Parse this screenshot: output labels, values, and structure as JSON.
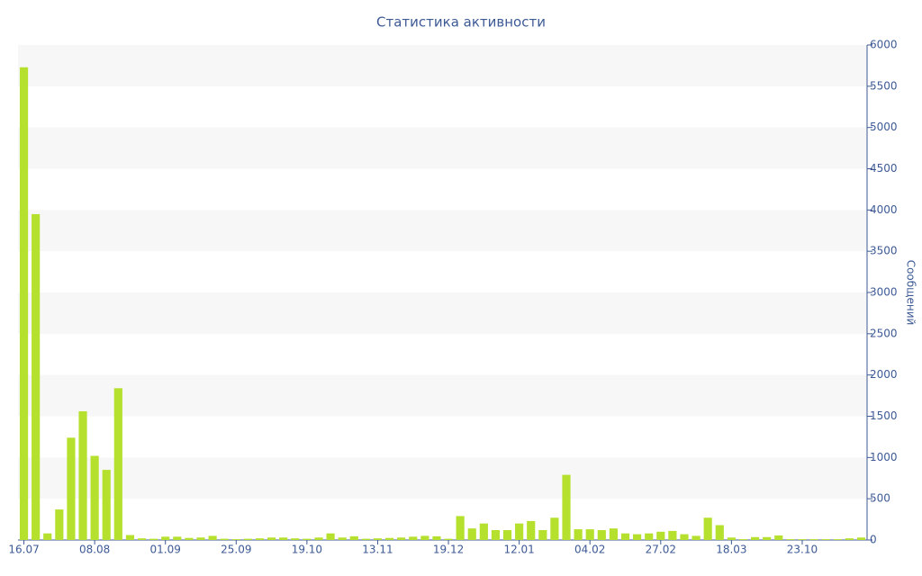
{
  "chart_data": {
    "type": "bar",
    "title": "Статистика активности",
    "y_label": "Сообщений",
    "y_axis_side": "right",
    "color": "#b5e02e",
    "grid": true,
    "categories": [
      "16.07",
      null,
      null,
      null,
      null,
      null,
      "08.08",
      null,
      null,
      null,
      null,
      null,
      "01.09",
      null,
      null,
      null,
      null,
      null,
      "25.09",
      null,
      null,
      null,
      null,
      null,
      "19.10",
      null,
      null,
      null,
      null,
      null,
      "13.11",
      null,
      null,
      null,
      null,
      null,
      "19.12",
      null,
      null,
      null,
      null,
      null,
      "12.01",
      null,
      null,
      null,
      null,
      null,
      "04.02",
      null,
      null,
      null,
      null,
      null,
      "27.02",
      null,
      null,
      null,
      null,
      null,
      "18.03",
      null,
      null,
      null,
      null,
      null,
      "23.10",
      null,
      null,
      null,
      null,
      null
    ],
    "values": [
      5730,
      3950,
      80,
      370,
      1240,
      1560,
      1020,
      850,
      1840,
      60,
      20,
      15,
      40,
      40,
      25,
      30,
      50,
      15,
      10,
      15,
      20,
      30,
      30,
      20,
      15,
      30,
      80,
      30,
      45,
      15,
      20,
      25,
      30,
      40,
      50,
      45,
      15,
      290,
      140,
      200,
      120,
      120,
      200,
      230,
      120,
      270,
      790,
      130,
      130,
      120,
      140,
      80,
      70,
      80,
      100,
      110,
      70,
      50,
      270,
      180,
      30,
      10,
      35,
      35,
      55,
      10,
      10,
      10,
      10,
      10,
      20,
      30
    ],
    "ylim": [
      0,
      6000
    ],
    "yticks": [
      0,
      500,
      1000,
      1500,
      2000,
      2500,
      3000,
      3500,
      4000,
      4500,
      5000,
      5500,
      6000
    ]
  }
}
